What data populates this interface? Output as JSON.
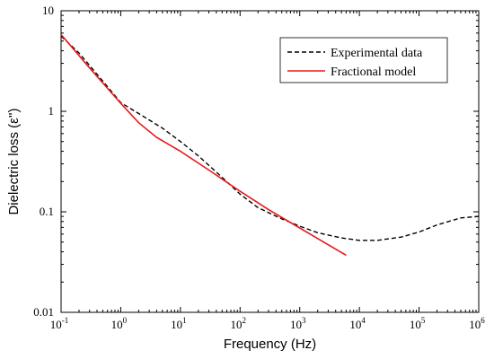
{
  "chart_data": {
    "type": "line",
    "title": "",
    "xlabel": "Frequency (Hz)",
    "ylabel": "Dielectric loss (ε'')",
    "xscale": "log",
    "yscale": "log",
    "xlim": [
      0.1,
      1000000
    ],
    "ylim": [
      0.01,
      10
    ],
    "x_ticks": [
      {
        "value": 0.1,
        "base": "10",
        "exp": "-1"
      },
      {
        "value": 1,
        "base": "10",
        "exp": "0"
      },
      {
        "value": 10,
        "base": "10",
        "exp": "1"
      },
      {
        "value": 100,
        "base": "10",
        "exp": "2"
      },
      {
        "value": 1000,
        "base": "10",
        "exp": "3"
      },
      {
        "value": 10000,
        "base": "10",
        "exp": "4"
      },
      {
        "value": 100000,
        "base": "10",
        "exp": "5"
      },
      {
        "value": 1000000,
        "base": "10",
        "exp": "6"
      }
    ],
    "y_ticks": [
      {
        "value": 10,
        "label": "10"
      },
      {
        "value": 1,
        "label": "1"
      },
      {
        "value": 0.1,
        "label": "0.1"
      },
      {
        "value": 0.01,
        "label": "0.01"
      }
    ],
    "legend_position": "top-right",
    "grid": false,
    "series": [
      {
        "name": "Experimental data",
        "style": "dashed",
        "color": "#000000",
        "x": [
          0.1,
          0.2,
          0.5,
          1,
          2,
          5,
          10,
          20,
          50,
          100,
          200,
          500,
          1000,
          2000,
          5000,
          10000,
          20000,
          50000,
          100000,
          200000,
          500000,
          1000000
        ],
        "y": [
          5.6,
          3.8,
          2.0,
          1.22,
          0.95,
          0.68,
          0.5,
          0.36,
          0.22,
          0.15,
          0.11,
          0.085,
          0.072,
          0.062,
          0.055,
          0.052,
          0.052,
          0.056,
          0.063,
          0.074,
          0.087,
          0.09
        ]
      },
      {
        "name": "Fractional model",
        "style": "solid",
        "color": "#e8191b",
        "x": [
          0.1,
          0.3,
          1,
          2,
          4,
          10,
          30,
          100,
          300,
          1000,
          3000,
          6000
        ],
        "y": [
          5.8,
          2.7,
          1.2,
          0.77,
          0.55,
          0.4,
          0.26,
          0.16,
          0.105,
          0.069,
          0.047,
          0.037
        ]
      }
    ]
  }
}
